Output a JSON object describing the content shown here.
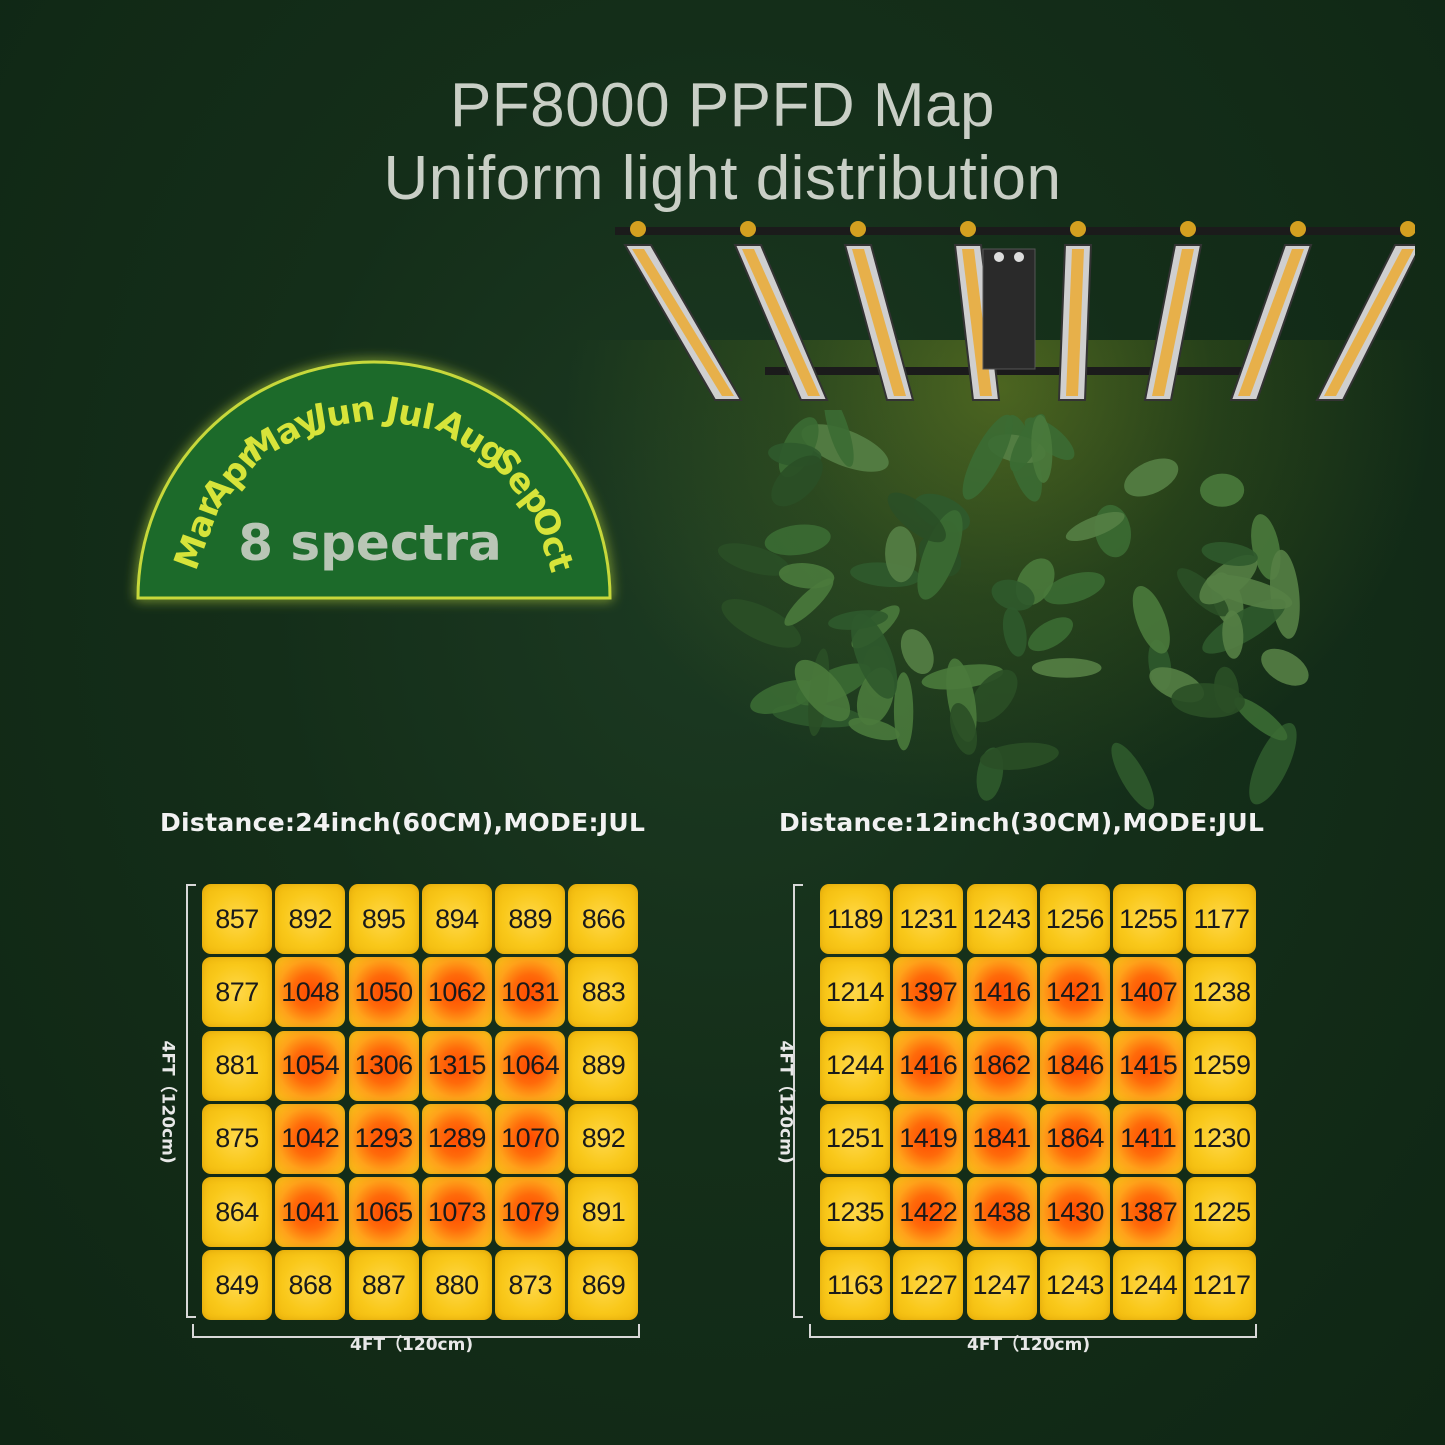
{
  "title": "PF8000 PPFD Map",
  "subtitle": "Uniform light distribution",
  "badge": {
    "months": [
      "Mar",
      "Apr",
      "May",
      "Jun",
      "Jul",
      "Aug",
      "Sep",
      "Oct"
    ],
    "label": "8 spectra"
  },
  "maps": [
    {
      "heading": "Distance:24inch(60CM),MODE:JUL",
      "x_label": "4FT（120cm)",
      "y_label": "4FT（120cm)",
      "rows": [
        [
          "857",
          "892",
          "895",
          "894",
          "889",
          "866"
        ],
        [
          "877",
          "1048",
          "1050",
          "1062",
          "1031",
          "883"
        ],
        [
          "881",
          "1054",
          "1306",
          "1315",
          "1064",
          "889"
        ],
        [
          "875",
          "1042",
          "1293",
          "1289",
          "1070",
          "892"
        ],
        [
          "864",
          "1041",
          "1065",
          "1073",
          "1079",
          "891"
        ],
        [
          "849",
          "868",
          "887",
          "880",
          "873",
          "869"
        ]
      ]
    },
    {
      "heading": "Distance:12inch(30CM),MODE:JUL",
      "x_label": "4FT（120cm)",
      "y_label": "4FT（120cm)",
      "rows": [
        [
          "1189",
          "1231",
          "1243",
          "1256",
          "1255",
          "1177"
        ],
        [
          "1214",
          "1397",
          "1416",
          "1421",
          "1407",
          "1238"
        ],
        [
          "1244",
          "1416",
          "1862",
          "1846",
          "1415",
          "1259"
        ],
        [
          "1251",
          "1419",
          "1841",
          "1864",
          "1411",
          "1230"
        ],
        [
          "1235",
          "1422",
          "1438",
          "1430",
          "1387",
          "1225"
        ],
        [
          "1163",
          "1227",
          "1247",
          "1243",
          "1244",
          "1217"
        ]
      ]
    }
  ],
  "colors": {
    "background": "#142e19",
    "badge_fill": "#1a6a2a",
    "month_text": "#d7e43a",
    "cell_base": "#f9c81a",
    "cell_hot": "#ff5a05"
  }
}
